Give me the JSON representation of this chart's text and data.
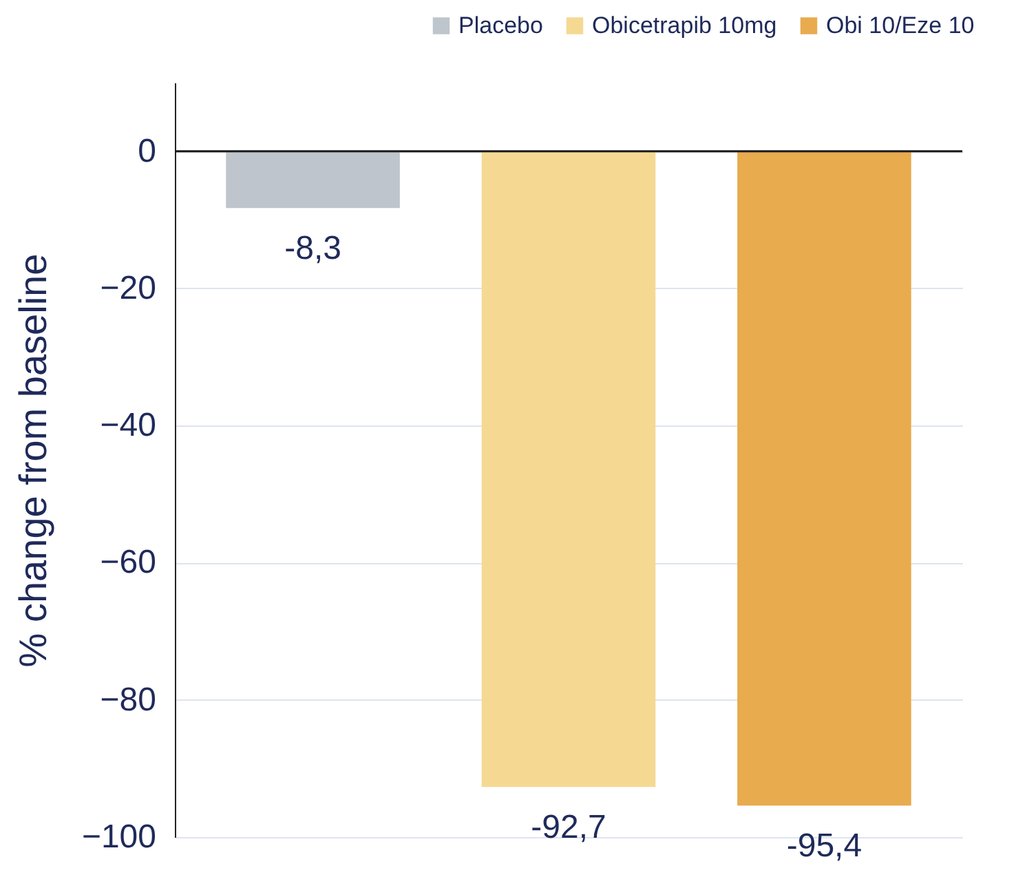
{
  "chart_data": {
    "type": "bar",
    "ylabel": "% change from baseline",
    "categories": [
      null,
      null,
      null
    ],
    "series": [
      {
        "name": "Placebo",
        "color": "#bfc5cc",
        "values": [
          -8.3,
          null,
          null
        ],
        "value_labels": [
          "-8,3",
          null,
          null
        ]
      },
      {
        "name": "Obicetrapib 10mg",
        "color": "#f5d993",
        "values": [
          null,
          -92.7,
          null
        ],
        "value_labels": [
          null,
          "-92,7",
          null
        ]
      },
      {
        "name": "Obi 10/Eze 10",
        "color": "#e8ab4e",
        "values": [
          null,
          null,
          -95.4
        ],
        "value_labels": [
          null,
          null,
          "-95,4"
        ]
      }
    ],
    "ylim": [
      -100,
      10
    ],
    "yticks": [
      -100,
      -80,
      -60,
      -40,
      -20,
      0
    ],
    "grid": "y",
    "legend": "top right",
    "ref_lines": [
      {
        "axis": "y",
        "value": 0,
        "color": "#1a1a1a"
      }
    ]
  }
}
